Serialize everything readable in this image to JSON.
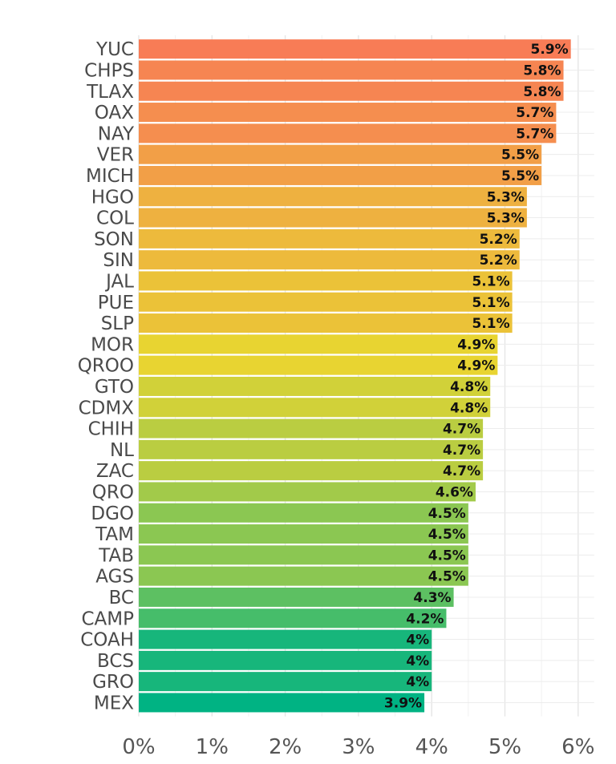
{
  "chart_data": {
    "type": "bar",
    "orientation": "horizontal",
    "categories": [
      "YUC",
      "CHPS",
      "TLAX",
      "OAX",
      "NAY",
      "VER",
      "MICH",
      "HGO",
      "COL",
      "SON",
      "SIN",
      "JAL",
      "PUE",
      "SLP",
      "MOR",
      "QROO",
      "GTO",
      "CDMX",
      "CHIH",
      "NL",
      "ZAC",
      "QRO",
      "DGO",
      "TAM",
      "TAB",
      "AGS",
      "BC",
      "CAMP",
      "COAH",
      "BCS",
      "GRO",
      "MEX"
    ],
    "values": [
      5.9,
      5.8,
      5.8,
      5.7,
      5.7,
      5.5,
      5.5,
      5.3,
      5.3,
      5.2,
      5.2,
      5.1,
      5.1,
      5.1,
      4.9,
      4.9,
      4.8,
      4.8,
      4.7,
      4.7,
      4.7,
      4.6,
      4.5,
      4.5,
      4.5,
      4.5,
      4.3,
      4.2,
      4.0,
      4.0,
      4.0,
      3.9
    ],
    "value_labels": [
      "5.9%",
      "5.8%",
      "5.8%",
      "5.7%",
      "5.7%",
      "5.5%",
      "5.5%",
      "5.3%",
      "5.3%",
      "5.2%",
      "5.2%",
      "5.1%",
      "5.1%",
      "5.1%",
      "4.9%",
      "4.9%",
      "4.8%",
      "4.8%",
      "4.7%",
      "4.7%",
      "4.7%",
      "4.6%",
      "4.5%",
      "4.5%",
      "4.5%",
      "4.5%",
      "4.3%",
      "4.2%",
      "4%",
      "4%",
      "4%",
      "3.9%"
    ],
    "xlim": [
      0,
      6
    ],
    "x_ticks": [
      0,
      1,
      2,
      3,
      4,
      5,
      6
    ],
    "x_tick_labels": [
      "0%",
      "1%",
      "2%",
      "3%",
      "4%",
      "5%",
      "6%"
    ],
    "grid": true,
    "legend": "none",
    "title": "",
    "xlabel": "",
    "ylabel": "",
    "color_scale": {
      "high": "#f87c56",
      "mid": "#e8d431",
      "low": "#00b383"
    }
  }
}
